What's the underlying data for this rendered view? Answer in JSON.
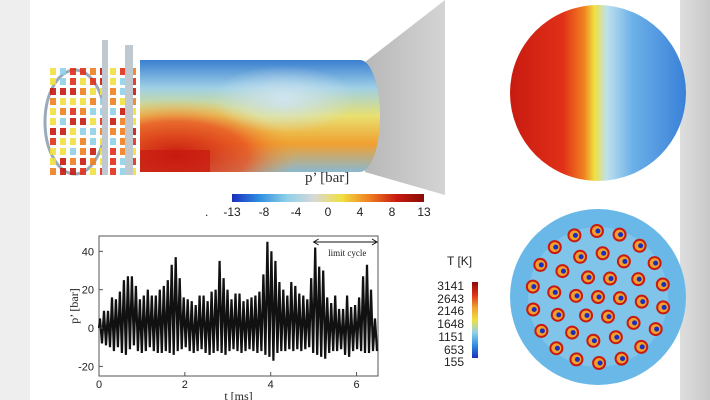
{
  "figure": {
    "pressure_colorbar": {
      "title": "p’ [bar]",
      "ticks": [
        "-13",
        "-8",
        "-4",
        "0",
        "4",
        "8",
        "13"
      ],
      "stray_mark": "."
    },
    "temperature_colorbar": {
      "title": "T [K]",
      "ticks": [
        "3141",
        "2643",
        "2146",
        "1648",
        "1151",
        "653",
        "155"
      ]
    },
    "colormap": [
      "#1a2fbf",
      "#2f8fe0",
      "#8fd0e8",
      "#d8d8d8",
      "#f0e040",
      "#f08020",
      "#c81a10",
      "#8a0c08"
    ]
  },
  "chart_data": {
    "type": "line",
    "xlabel": "t [ms]",
    "ylabel": "p’ [bar]",
    "xlim": [
      0,
      6.5
    ],
    "ylim": [
      -25,
      48
    ],
    "xticks": [
      "0",
      "2",
      "4",
      "6"
    ],
    "yticks": [
      "-20",
      "0",
      "20",
      "40"
    ],
    "grid": false,
    "annotation": {
      "text": "limit cycle",
      "t_start": 5.0,
      "t_end": 6.5
    },
    "cycle_peaks": [
      5,
      9,
      9,
      16,
      15,
      19,
      25,
      27,
      27,
      22,
      15,
      17,
      20,
      17,
      17,
      20,
      22,
      25,
      33,
      37,
      26,
      16,
      15,
      14,
      12,
      17,
      17,
      14,
      19,
      20,
      35,
      26,
      20,
      15,
      18,
      18,
      14,
      15,
      16,
      17,
      19,
      28,
      45,
      40,
      35,
      24,
      20,
      17,
      24,
      22,
      18,
      17,
      15,
      26,
      42,
      32,
      30,
      16,
      13,
      17,
      10,
      10,
      17,
      11,
      12,
      16,
      27,
      33,
      20,
      5
    ],
    "cycle_troughs": [
      -8,
      -9,
      -10,
      -12,
      -10,
      -13,
      -14,
      -11,
      -9,
      -12,
      -13,
      -12,
      -10,
      -12,
      -13,
      -13,
      -12,
      -13,
      -14,
      -12,
      -11,
      -10,
      -12,
      -13,
      -12,
      -11,
      -13,
      -14,
      -13,
      -12,
      -13,
      -14,
      -12,
      -11,
      -12,
      -13,
      -12,
      -11,
      -12,
      -13,
      -12,
      -14,
      -15,
      -17,
      -13,
      -12,
      -12,
      -11,
      -12,
      -11,
      -12,
      -11,
      -10,
      -13,
      -14,
      -15,
      -16,
      -13,
      -12,
      -12,
      -11,
      -14,
      -15,
      -12,
      -11,
      -12,
      -13,
      -13,
      -12,
      -12
    ]
  }
}
